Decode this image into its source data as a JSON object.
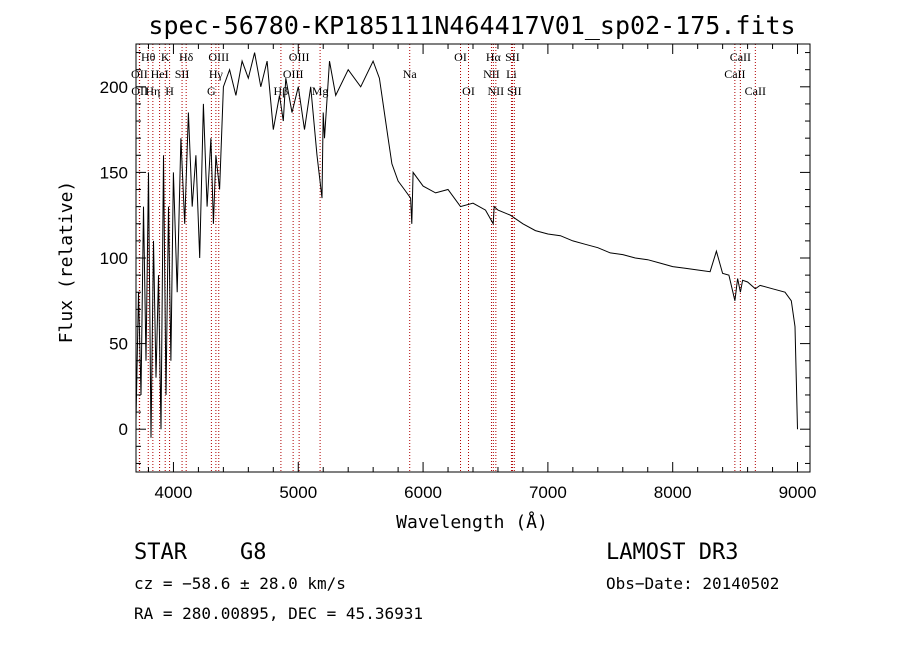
{
  "chart_data": {
    "type": "line",
    "title": "spec-56780-KP185111N464417V01_sp02-175.fits",
    "xlabel": "Wavelength (Å)",
    "ylabel": "Flux (relative)",
    "xlim": [
      3700,
      9100
    ],
    "ylim": [
      -25,
      225
    ],
    "x_ticks": [
      4000,
      5000,
      6000,
      7000,
      8000,
      9000
    ],
    "y_ticks": [
      0,
      50,
      100,
      150,
      200
    ],
    "series": [
      {
        "name": "flux",
        "x": [
          3700,
          3720,
          3740,
          3760,
          3780,
          3800,
          3820,
          3840,
          3860,
          3880,
          3900,
          3920,
          3940,
          3960,
          3980,
          4000,
          4030,
          4060,
          4090,
          4120,
          4150,
          4180,
          4210,
          4240,
          4270,
          4300,
          4320,
          4340,
          4370,
          4400,
          4450,
          4500,
          4550,
          4600,
          4650,
          4700,
          4750,
          4800,
          4850,
          4880,
          4900,
          4950,
          5000,
          5050,
          5100,
          5150,
          5190,
          5200,
          5210,
          5250,
          5300,
          5400,
          5500,
          5600,
          5650,
          5700,
          5720,
          5750,
          5800,
          5850,
          5900,
          5910,
          5920,
          6000,
          6100,
          6200,
          6300,
          6400,
          6500,
          6562,
          6570,
          6600,
          6700,
          6800,
          6900,
          7000,
          7100,
          7200,
          7300,
          7400,
          7500,
          7600,
          7700,
          7800,
          7900,
          8000,
          8100,
          8200,
          8300,
          8350,
          8400,
          8450,
          8498,
          8520,
          8542,
          8560,
          8600,
          8662,
          8700,
          8800,
          8900,
          8950,
          8980,
          9000
        ],
        "y": [
          5,
          80,
          20,
          130,
          40,
          150,
          -5,
          110,
          30,
          90,
          0,
          160,
          20,
          130,
          40,
          150,
          80,
          170,
          120,
          185,
          130,
          160,
          100,
          190,
          130,
          170,
          120,
          160,
          140,
          200,
          210,
          195,
          215,
          205,
          220,
          200,
          215,
          175,
          195,
          180,
          205,
          185,
          200,
          175,
          200,
          160,
          135,
          185,
          170,
          215,
          195,
          210,
          200,
          215,
          205,
          180,
          170,
          155,
          145,
          140,
          135,
          120,
          150,
          142,
          138,
          140,
          130,
          132,
          128,
          120,
          130,
          128,
          125,
          120,
          116,
          114,
          113,
          110,
          108,
          106,
          103,
          102,
          100,
          99,
          97,
          95,
          94,
          93,
          92,
          104,
          91,
          90,
          75,
          88,
          80,
          87,
          86,
          82,
          84,
          82,
          80,
          75,
          60,
          0
        ]
      }
    ],
    "spectral_lines": [
      {
        "label": "Hθ",
        "wl": 3798,
        "tier": 0
      },
      {
        "label": "Hη",
        "wl": 3835,
        "tier": 2
      },
      {
        "label": "K",
        "wl": 3934,
        "tier": 0
      },
      {
        "label": "H",
        "wl": 3969,
        "tier": 2
      },
      {
        "label": "HeI",
        "wl": 3889,
        "tier": 1
      },
      {
        "label": "SII",
        "wl": 4069,
        "tier": 1
      },
      {
        "label": "Hδ",
        "wl": 4102,
        "tier": 0
      },
      {
        "label": "OII",
        "wl": 3727,
        "tier": 1
      },
      {
        "label": "OII",
        "wl": 3729,
        "tier": 2
      },
      {
        "label": "OIII",
        "wl": 4363,
        "tier": 0
      },
      {
        "label": "Hγ",
        "wl": 4340,
        "tier": 1
      },
      {
        "label": "G",
        "wl": 4304,
        "tier": 2
      },
      {
        "label": "OIII",
        "wl": 5007,
        "tier": 0
      },
      {
        "label": "OIII",
        "wl": 4959,
        "tier": 1
      },
      {
        "label": "Hβ",
        "wl": 4861,
        "tier": 2
      },
      {
        "label": "Mg",
        "wl": 5175,
        "tier": 2
      },
      {
        "label": "Na",
        "wl": 5893,
        "tier": 1
      },
      {
        "label": "OI",
        "wl": 6300,
        "tier": 0
      },
      {
        "label": "OI",
        "wl": 6364,
        "tier": 2
      },
      {
        "label": "Hα",
        "wl": 6563,
        "tier": 0
      },
      {
        "label": "NII",
        "wl": 6548,
        "tier": 1
      },
      {
        "label": "NII",
        "wl": 6583,
        "tier": 2
      },
      {
        "label": "SII",
        "wl": 6716,
        "tier": 0
      },
      {
        "label": "Li",
        "wl": 6708,
        "tier": 1
      },
      {
        "label": "SII",
        "wl": 6731,
        "tier": 2
      },
      {
        "label": "CaII",
        "wl": 8542,
        "tier": 0
      },
      {
        "label": "CaII",
        "wl": 8498,
        "tier": 1
      },
      {
        "label": "CaII",
        "wl": 8662,
        "tier": 2
      }
    ]
  },
  "info": {
    "object_class": "STAR",
    "subclass": "G8",
    "survey": "LAMOST DR3",
    "cz": "cz = −58.6 ± 28.0 km/s",
    "obs_date": "Obs−Date: 20140502",
    "coords": "RA = 280.00895, DEC =  45.36931"
  },
  "colors": {
    "spectrum": "#000000",
    "marker": "#b00000",
    "axis": "#000000"
  }
}
